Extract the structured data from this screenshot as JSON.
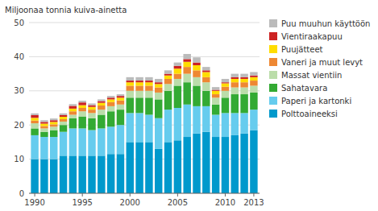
{
  "chart_data": {
    "type": "bar",
    "stacked": true,
    "ylabel": "Miljoonaa tonnia kuiva-ainetta",
    "x": [
      1990,
      1991,
      1992,
      1993,
      1994,
      1995,
      1996,
      1997,
      1998,
      1999,
      2000,
      2001,
      2002,
      2003,
      2004,
      2005,
      2006,
      2007,
      2008,
      2009,
      2010,
      2011,
      2012,
      2013
    ],
    "xlim": [
      1989.4,
      2013.6
    ],
    "xticks": [
      1990,
      1995,
      2000,
      2005,
      2010,
      2013
    ],
    "ylim": [
      0,
      50
    ],
    "yticks": [
      0,
      10,
      20,
      30,
      40,
      50
    ],
    "grid": true,
    "legend": "right",
    "series": [
      {
        "name": "Polttoaineeksi",
        "color": "#0099CC",
        "values": [
          10.0,
          10.0,
          10.0,
          11.0,
          11.0,
          11.0,
          11.0,
          11.0,
          11.5,
          11.5,
          15.0,
          15.0,
          15.0,
          13.0,
          15.0,
          15.5,
          16.5,
          17.5,
          18.0,
          16.5,
          16.5,
          17.0,
          17.5,
          18.5
        ]
      },
      {
        "name": "Paperi ja kartonki",
        "color": "#66CCEE",
        "values": [
          7.0,
          6.5,
          6.5,
          7.0,
          8.0,
          8.0,
          7.5,
          8.0,
          8.0,
          8.5,
          8.5,
          8.5,
          8.0,
          9.0,
          9.5,
          9.5,
          9.5,
          8.0,
          7.5,
          6.5,
          7.0,
          6.5,
          6.0,
          6.0
        ]
      },
      {
        "name": "Sahatavara",
        "color": "#33AA33",
        "values": [
          2.0,
          1.5,
          2.0,
          2.0,
          3.0,
          3.5,
          3.5,
          4.0,
          4.5,
          4.5,
          4.5,
          4.5,
          5.0,
          5.5,
          5.5,
          6.5,
          6.5,
          6.0,
          4.5,
          3.0,
          4.5,
          5.5,
          5.5,
          5.0
        ]
      },
      {
        "name": "Massat vientiin",
        "color": "#BBDDAA",
        "values": [
          1.5,
          1.0,
          1.0,
          1.0,
          1.0,
          1.5,
          1.5,
          1.5,
          1.5,
          1.5,
          2.0,
          2.0,
          2.0,
          2.0,
          2.0,
          2.0,
          2.5,
          2.5,
          2.5,
          2.0,
          2.0,
          2.0,
          2.0,
          2.0
        ]
      },
      {
        "name": "Vaneri ja muut levyt",
        "color": "#EE8833",
        "values": [
          0.8,
          0.7,
          0.7,
          0.7,
          1.0,
          1.0,
          1.0,
          1.2,
          1.2,
          1.2,
          1.5,
          1.5,
          1.5,
          1.5,
          1.5,
          1.5,
          2.0,
          2.0,
          1.5,
          1.0,
          1.2,
          1.5,
          1.5,
          1.5
        ]
      },
      {
        "name": "Puujätteet",
        "color": "#FFDD00",
        "values": [
          0.8,
          0.7,
          0.7,
          0.7,
          0.8,
          0.8,
          0.8,
          0.8,
          0.8,
          0.8,
          1.0,
          1.0,
          1.0,
          1.0,
          1.0,
          1.5,
          1.5,
          1.5,
          1.5,
          1.0,
          1.0,
          1.0,
          1.0,
          1.0
        ]
      },
      {
        "name": "Vientiraakapuu",
        "color": "#CC2222",
        "values": [
          0.8,
          0.5,
          0.5,
          0.5,
          0.8,
          0.8,
          0.5,
          0.5,
          0.5,
          0.5,
          0.5,
          0.5,
          0.5,
          0.5,
          0.5,
          0.8,
          0.8,
          0.8,
          0.5,
          0.3,
          0.3,
          0.5,
          0.5,
          0.5
        ]
      },
      {
        "name": "Puu muuhun käyttöön",
        "color": "#BBBBBB",
        "values": [
          0.5,
          0.5,
          0.5,
          0.5,
          0.5,
          0.5,
          0.5,
          0.5,
          0.5,
          0.5,
          1.0,
          1.0,
          1.0,
          1.0,
          1.0,
          1.0,
          1.5,
          1.5,
          1.0,
          0.8,
          1.0,
          1.0,
          1.0,
          1.0
        ]
      }
    ]
  }
}
